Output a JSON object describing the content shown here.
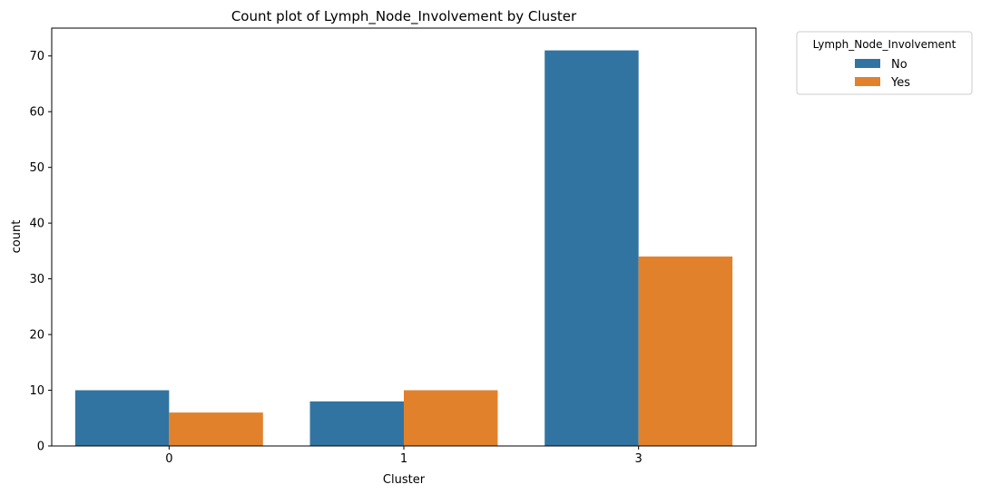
{
  "chart_data": {
    "type": "bar",
    "title": "Count plot of Lymph_Node_Involvement by Cluster",
    "xlabel": "Cluster",
    "ylabel": "count",
    "categories": [
      "0",
      "1",
      "3"
    ],
    "series": [
      {
        "name": "No",
        "color": "#3274a1",
        "values": [
          10,
          8,
          71
        ]
      },
      {
        "name": "Yes",
        "color": "#e1812c",
        "values": [
          6,
          10,
          34
        ]
      }
    ],
    "ylim": [
      0,
      75
    ],
    "yticks": [
      0,
      10,
      20,
      30,
      40,
      50,
      60,
      70
    ],
    "grid": false,
    "legend": {
      "title": "Lymph_Node_Involvement",
      "placement": "outside-top-right"
    }
  }
}
